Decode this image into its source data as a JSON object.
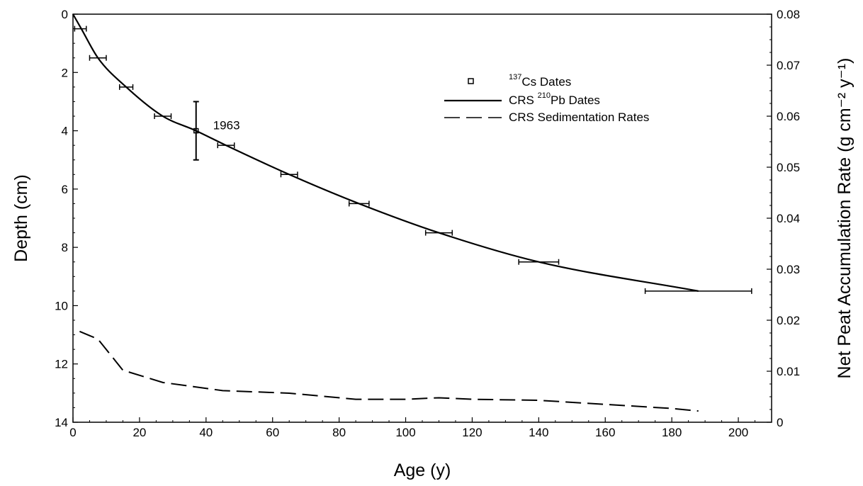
{
  "chart_data": {
    "type": "line",
    "xlabel": "Age (y)",
    "ylabel": "Depth (cm)",
    "y2label": "Net Peat Accumulation Rate (g cm⁻² y⁻¹)",
    "xlim": [
      0,
      210
    ],
    "ylim": [
      0,
      14
    ],
    "y_reversed": true,
    "y2lim": [
      0,
      0.08
    ],
    "x_ticks": [
      0,
      20,
      40,
      60,
      80,
      100,
      120,
      140,
      160,
      180,
      200
    ],
    "y_ticks": [
      0,
      2,
      4,
      6,
      8,
      10,
      12,
      14
    ],
    "y2_ticks": [
      0,
      0.01,
      0.02,
      0.03,
      0.04,
      0.05,
      0.06,
      0.07,
      0.08
    ],
    "x_tick_labels": [
      "0",
      "20",
      "40",
      "60",
      "80",
      "100",
      "120",
      "140",
      "160",
      "180",
      "200"
    ],
    "y_tick_labels": [
      "0",
      "2",
      "4",
      "6",
      "8",
      "10",
      "12",
      "14"
    ],
    "y2_tick_labels": [
      "0",
      "0.01",
      "0.02",
      "0.03",
      "0.04",
      "0.05",
      "0.06",
      "0.07",
      "0.08"
    ],
    "grid": false,
    "legend_position": "top-right",
    "legend": {
      "cs": {
        "sup": "137",
        "pre": "",
        "post": "Cs Dates"
      },
      "pb": {
        "pre": "CRS ",
        "sup": "210",
        "post": "Pb Dates"
      },
      "sed": {
        "text": "CRS Sedimentation Rates"
      }
    },
    "series": [
      {
        "name": "CRS 210Pb Dates",
        "axis": "left",
        "style": "solid",
        "points": [
          {
            "x": 0,
            "y": 0
          },
          {
            "x": 2.5,
            "y": 0.5
          },
          {
            "x": 7.5,
            "y": 1.5
          },
          {
            "x": 16,
            "y": 2.5
          },
          {
            "x": 27,
            "y": 3.5
          },
          {
            "x": 37,
            "y": 4.0
          },
          {
            "x": 46,
            "y": 4.5
          },
          {
            "x": 65,
            "y": 5.5
          },
          {
            "x": 86,
            "y": 6.5
          },
          {
            "x": 110,
            "y": 7.5
          },
          {
            "x": 140,
            "y": 8.5
          },
          {
            "x": 188,
            "y": 9.5
          }
        ],
        "x_error_bars": [
          {
            "y": 0.5,
            "x_low": 0.5,
            "x_high": 4.0
          },
          {
            "y": 1.5,
            "x_low": 5.0,
            "x_high": 10.0
          },
          {
            "y": 2.5,
            "x_low": 14.0,
            "x_high": 18.0
          },
          {
            "y": 3.5,
            "x_low": 24.5,
            "x_high": 29.5
          },
          {
            "y": 4.5,
            "x_low": 43.5,
            "x_high": 48.5
          },
          {
            "y": 5.5,
            "x_low": 62.5,
            "x_high": 67.5
          },
          {
            "y": 6.5,
            "x_low": 83.0,
            "x_high": 89.0
          },
          {
            "y": 7.5,
            "x_low": 106.0,
            "x_high": 114.0
          },
          {
            "y": 8.5,
            "x_low": 134.0,
            "x_high": 146.0
          },
          {
            "y": 9.5,
            "x_low": 172.0,
            "x_high": 204.0
          }
        ]
      },
      {
        "name": "137Cs Dates",
        "axis": "left",
        "style": "marker",
        "points": [
          {
            "x": 37,
            "y": 4.0
          }
        ],
        "y_error_bars": [
          {
            "x": 37,
            "y_low": 3.0,
            "y_high": 5.0
          }
        ],
        "annotation": "1963"
      },
      {
        "name": "CRS Sedimentation Rates",
        "axis": "right",
        "style": "dashed",
        "points": [
          {
            "x": 2,
            "y": 0.0178
          },
          {
            "x": 7.5,
            "y": 0.0163
          },
          {
            "x": 15,
            "y": 0.0102
          },
          {
            "x": 27,
            "y": 0.0078
          },
          {
            "x": 45,
            "y": 0.0062
          },
          {
            "x": 65,
            "y": 0.0057
          },
          {
            "x": 85,
            "y": 0.0045
          },
          {
            "x": 100,
            "y": 0.0045
          },
          {
            "x": 110,
            "y": 0.0048
          },
          {
            "x": 120,
            "y": 0.0045
          },
          {
            "x": 140,
            "y": 0.0043
          },
          {
            "x": 160,
            "y": 0.0035
          },
          {
            "x": 180,
            "y": 0.0027
          },
          {
            "x": 188,
            "y": 0.0022
          }
        ]
      }
    ]
  }
}
